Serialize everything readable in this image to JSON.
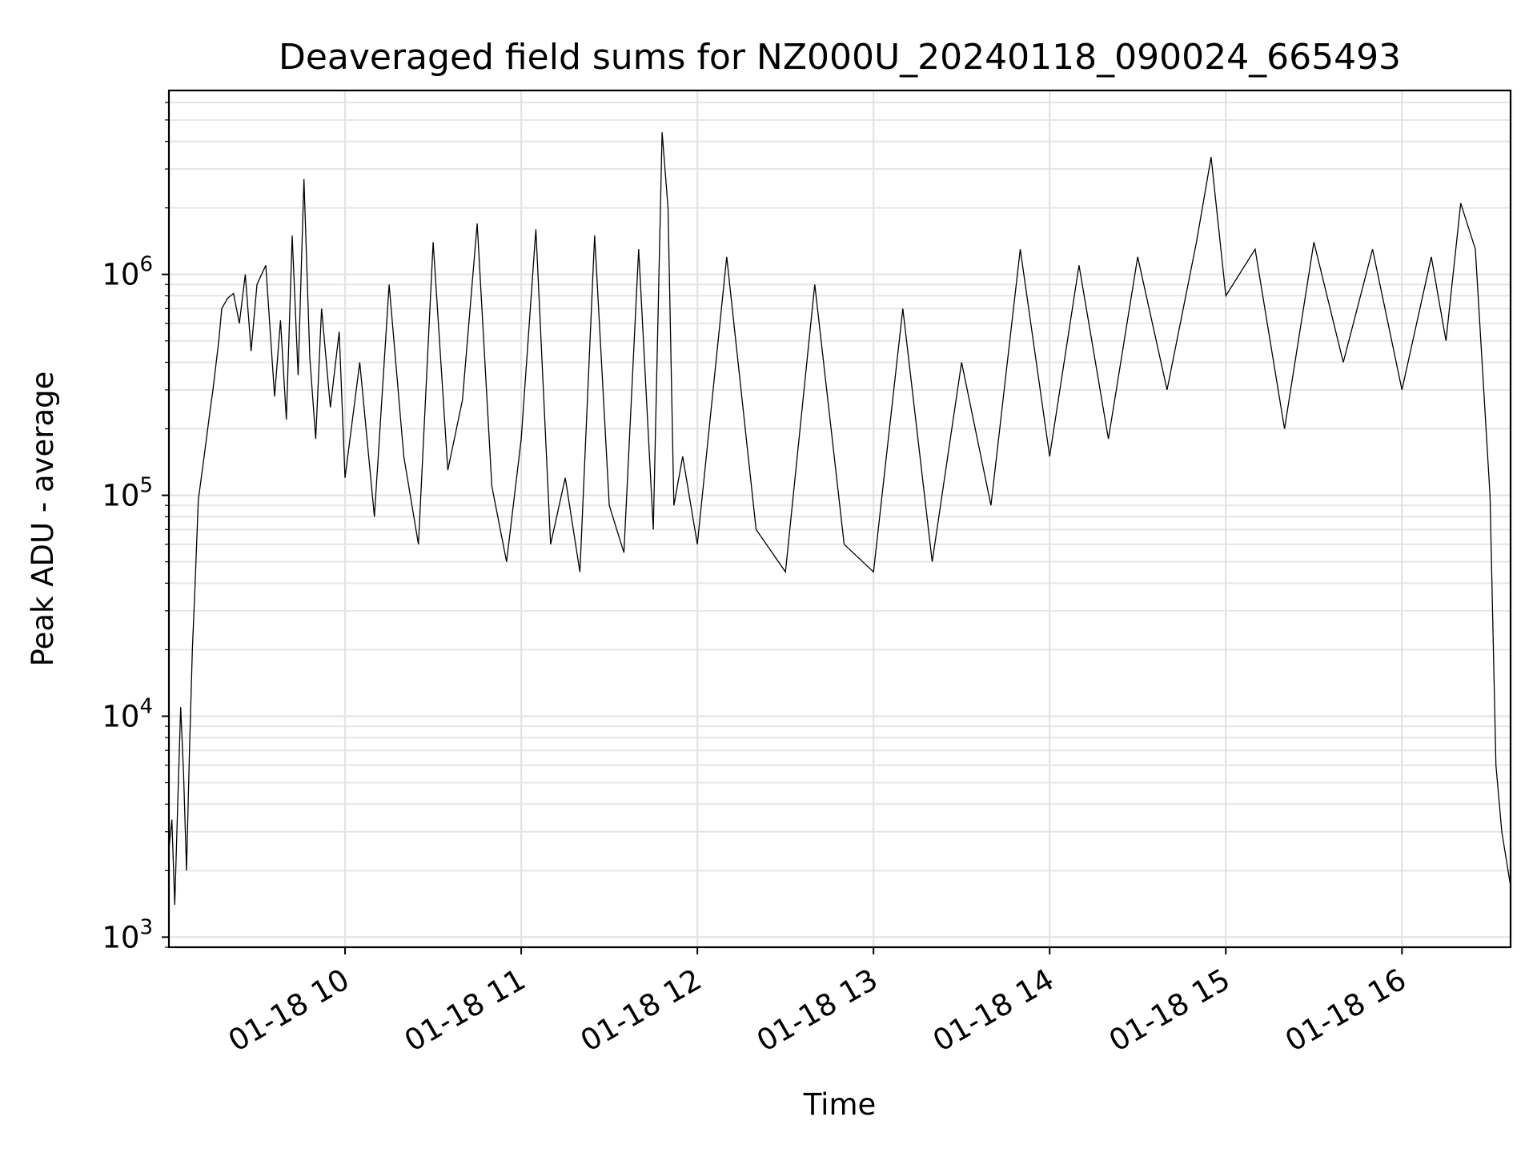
{
  "chart_data": {
    "type": "line",
    "title": "Deaveraged field sums for NZ000U_20240118_090024_665493",
    "xlabel": "Time",
    "ylabel": "Peak ADU - average",
    "y_scale": "log",
    "xlim": [
      "01-18 09:00",
      "01-18 16:37"
    ],
    "ylim": [
      900,
      6800000
    ],
    "grid": true,
    "line_color": "#000000",
    "x_ticks": [
      {
        "value": "01-18 10:00",
        "label": "01-18 10"
      },
      {
        "value": "01-18 11:00",
        "label": "01-18 11"
      },
      {
        "value": "01-18 12:00",
        "label": "01-18 12"
      },
      {
        "value": "01-18 13:00",
        "label": "01-18 13"
      },
      {
        "value": "01-18 14:00",
        "label": "01-18 14"
      },
      {
        "value": "01-18 15:00",
        "label": "01-18 15"
      },
      {
        "value": "01-18 16:00",
        "label": "01-18 16"
      }
    ],
    "y_ticks": [
      {
        "value": 1000,
        "base": "10",
        "exponent": "3"
      },
      {
        "value": 10000,
        "base": "10",
        "exponent": "4"
      },
      {
        "value": 100000,
        "base": "10",
        "exponent": "5"
      },
      {
        "value": 1000000,
        "base": "10",
        "exponent": "6"
      }
    ],
    "series": [
      {
        "name": "",
        "points": [
          [
            "01-18 09:00",
            2500
          ],
          [
            "01-18 09:01",
            3400
          ],
          [
            "01-18 09:02",
            1400
          ],
          [
            "01-18 09:03",
            4000
          ],
          [
            "01-18 09:04",
            11000
          ],
          [
            "01-18 09:05",
            5500
          ],
          [
            "01-18 09:06",
            2000
          ],
          [
            "01-18 09:07",
            7000
          ],
          [
            "01-18 09:08",
            20000
          ],
          [
            "01-18 09:09",
            42000
          ],
          [
            "01-18 09:10",
            95000
          ],
          [
            "01-18 09:12",
            150000
          ],
          [
            "01-18 09:14",
            240000
          ],
          [
            "01-18 09:15",
            300000
          ],
          [
            "01-18 09:17",
            500000
          ],
          [
            "01-18 09:18",
            700000
          ],
          [
            "01-18 09:20",
            780000
          ],
          [
            "01-18 09:22",
            820000
          ],
          [
            "01-18 09:24",
            600000
          ],
          [
            "01-18 09:26",
            1000000
          ],
          [
            "01-18 09:28",
            450000
          ],
          [
            "01-18 09:30",
            900000
          ],
          [
            "01-18 09:33",
            1100000
          ],
          [
            "01-18 09:36",
            280000
          ],
          [
            "01-18 09:38",
            620000
          ],
          [
            "01-18 09:40",
            220000
          ],
          [
            "01-18 09:42",
            1500000
          ],
          [
            "01-18 09:44",
            350000
          ],
          [
            "01-18 09:46",
            2700000
          ],
          [
            "01-18 09:48",
            420000
          ],
          [
            "01-18 09:50",
            180000
          ],
          [
            "01-18 09:52",
            700000
          ],
          [
            "01-18 09:55",
            250000
          ],
          [
            "01-18 09:58",
            550000
          ],
          [
            "01-18 10:00",
            120000
          ],
          [
            "01-18 10:05",
            400000
          ],
          [
            "01-18 10:10",
            80000
          ],
          [
            "01-18 10:15",
            900000
          ],
          [
            "01-18 10:20",
            150000
          ],
          [
            "01-18 10:25",
            60000
          ],
          [
            "01-18 10:30",
            1400000
          ],
          [
            "01-18 10:35",
            130000
          ],
          [
            "01-18 10:40",
            270000
          ],
          [
            "01-18 10:45",
            1700000
          ],
          [
            "01-18 10:50",
            110000
          ],
          [
            "01-18 10:55",
            50000
          ],
          [
            "01-18 11:00",
            180000
          ],
          [
            "01-18 11:05",
            1600000
          ],
          [
            "01-18 11:10",
            60000
          ],
          [
            "01-18 11:15",
            120000
          ],
          [
            "01-18 11:20",
            45000
          ],
          [
            "01-18 11:25",
            1500000
          ],
          [
            "01-18 11:30",
            90000
          ],
          [
            "01-18 11:35",
            55000
          ],
          [
            "01-18 11:40",
            1300000
          ],
          [
            "01-18 11:45",
            70000
          ],
          [
            "01-18 11:48",
            4400000
          ],
          [
            "01-18 11:50",
            2000000
          ],
          [
            "01-18 11:52",
            90000
          ],
          [
            "01-18 11:55",
            150000
          ],
          [
            "01-18 12:00",
            60000
          ],
          [
            "01-18 12:10",
            1200000
          ],
          [
            "01-18 12:20",
            70000
          ],
          [
            "01-18 12:30",
            45000
          ],
          [
            "01-18 12:40",
            900000
          ],
          [
            "01-18 12:50",
            60000
          ],
          [
            "01-18 13:00",
            45000
          ],
          [
            "01-18 13:10",
            700000
          ],
          [
            "01-18 13:20",
            50000
          ],
          [
            "01-18 13:30",
            400000
          ],
          [
            "01-18 13:40",
            90000
          ],
          [
            "01-18 13:50",
            1300000
          ],
          [
            "01-18 14:00",
            150000
          ],
          [
            "01-18 14:10",
            1100000
          ],
          [
            "01-18 14:20",
            180000
          ],
          [
            "01-18 14:30",
            1200000
          ],
          [
            "01-18 14:40",
            300000
          ],
          [
            "01-18 14:50",
            1400000
          ],
          [
            "01-18 14:55",
            3400000
          ],
          [
            "01-18 15:00",
            800000
          ],
          [
            "01-18 15:10",
            1300000
          ],
          [
            "01-18 15:20",
            200000
          ],
          [
            "01-18 15:30",
            1400000
          ],
          [
            "01-18 15:40",
            400000
          ],
          [
            "01-18 15:50",
            1300000
          ],
          [
            "01-18 16:00",
            300000
          ],
          [
            "01-18 16:10",
            1200000
          ],
          [
            "01-18 16:15",
            500000
          ],
          [
            "01-18 16:20",
            2100000
          ],
          [
            "01-18 16:25",
            1300000
          ],
          [
            "01-18 16:30",
            100000
          ],
          [
            "01-18 16:32",
            6000
          ],
          [
            "01-18 16:34",
            3000
          ],
          [
            "01-18 16:37",
            1700
          ]
        ]
      }
    ]
  }
}
